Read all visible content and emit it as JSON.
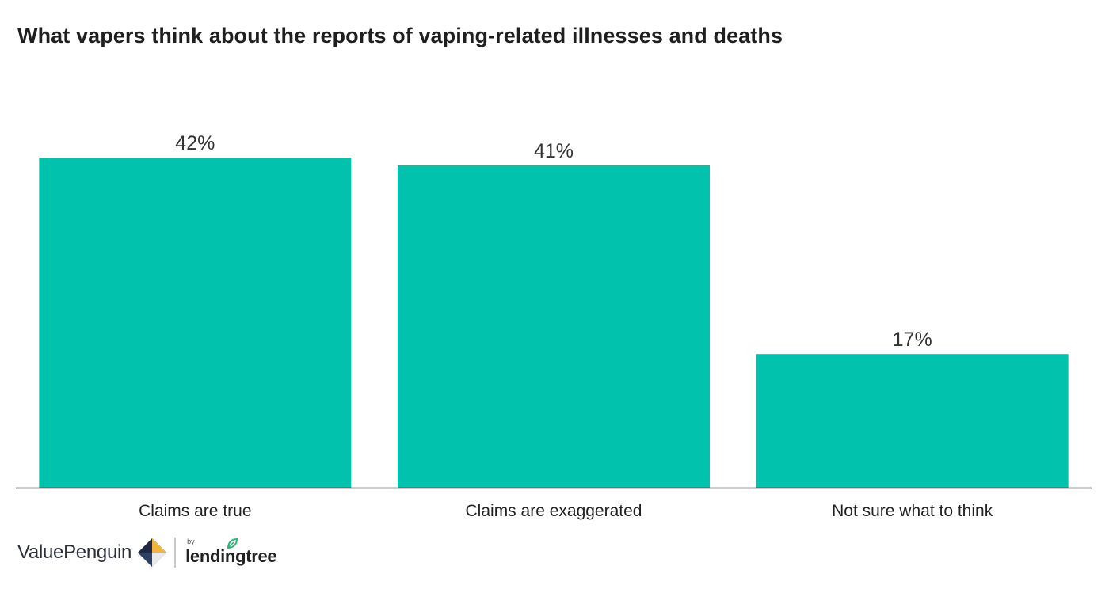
{
  "title": "What vapers think about the reports of vaping-related illnesses and deaths",
  "colors": {
    "bar": "#00c2ad",
    "axis": "#333333"
  },
  "chart_data": {
    "type": "bar",
    "title": "What vapers think about the reports of vaping-related illnesses and deaths",
    "categories": [
      "Claims are true",
      "Claims are exaggerated",
      "Not sure what to think"
    ],
    "values": [
      42,
      41,
      17
    ],
    "data_labels": [
      "42%",
      "41%",
      "17%"
    ],
    "unit": "%",
    "ylim": [
      0,
      42
    ],
    "xlabel": "",
    "ylabel": "",
    "grid": false,
    "legend": "none"
  },
  "branding": {
    "brand_name": "ValuePenguin",
    "by_text": "by",
    "partner_name": "lendingtree",
    "brand_icon": "valuepenguin-diamond-icon",
    "partner_icon": "lendingtree-leaf-icon"
  }
}
